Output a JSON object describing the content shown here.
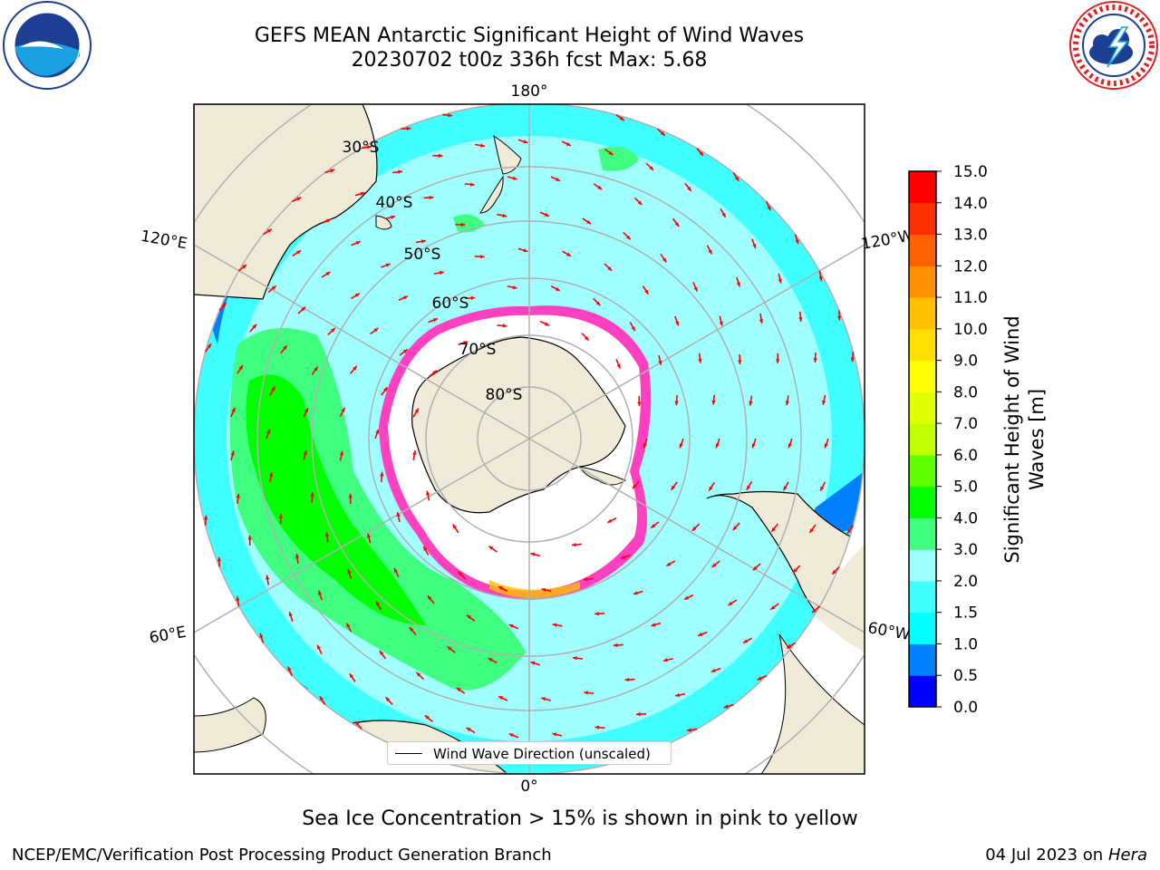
{
  "header": {
    "title_line1": "GEFS MEAN Antarctic Significant Height of Wind Waves",
    "title_line2": "20230702 t00z 336h fcst   Max: 5.68"
  },
  "logos": {
    "left": "noaa-logo",
    "right": "national-weather-service-logo"
  },
  "map": {
    "projection": "south-polar-stereographic",
    "longitude_labels": {
      "top": "180°",
      "bottom": "0°",
      "upper_left": "120°E",
      "lower_left": "60°E",
      "upper_right": "120°W",
      "lower_right": "60°W"
    },
    "latitude_labels": [
      "30°S",
      "40°S",
      "50°S",
      "60°S",
      "70°S",
      "80°S"
    ],
    "legend_label": "Wind Wave Direction (unscaled)",
    "land_color": "#efebd8",
    "arrow_color": "#ff0000"
  },
  "colorbar": {
    "label": "Significant Height of Wind Waves [m]",
    "ticks": [
      "0.0",
      "0.5",
      "1.0",
      "1.5",
      "2.0",
      "3.0",
      "4.0",
      "5.0",
      "6.0",
      "7.0",
      "8.0",
      "9.0",
      "10.0",
      "11.0",
      "12.0",
      "13.0",
      "14.0",
      "15.0"
    ],
    "colors": [
      "#0000ff",
      "#0080ff",
      "#00ffff",
      "#40ffff",
      "#a0ffff",
      "#40ff80",
      "#00ff00",
      "#60ff00",
      "#c0ff00",
      "#e0ff00",
      "#ffff00",
      "#ffe000",
      "#ffc000",
      "#ff9000",
      "#ff6000",
      "#ff3000",
      "#ff0000"
    ]
  },
  "footer": {
    "sea_ice_note": "Sea Ice Concentration > 15% is shown in pink to yellow",
    "credit": "NCEP/EMC/Verification Post Processing Product Generation Branch",
    "date_text": "04 Jul 2023 on ",
    "date_machine": "Hera"
  }
}
